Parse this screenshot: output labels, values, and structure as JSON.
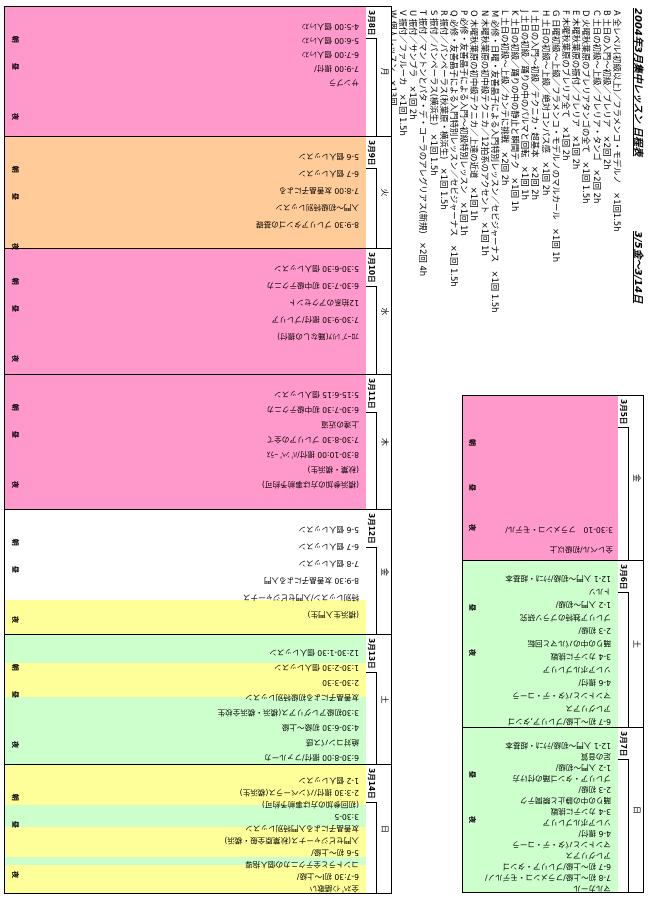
{
  "legend": {
    "title": "2004年3月集中レッスン 日程表",
    "range": "3/5金～3/14日",
    "items": [
      "A 全レベル(初級以上)／フラメンコ・モデルノ　×1回1.5h",
      "B 土日の入門～初級／ブレリア　×2回 2h",
      "C 土日の初級～上級／ブレリア・タンゴ　×2回 2h",
      "D 火曜秋葉原のブレリアタンゴの全て　×1回 1.5h",
      "E 木曜秋葉原の振付／ブレリア　×1回 2h",
      "F 木曜秋葉原のブレリア全て　×1回 2h",
      "G 日曜初級～上級／フラメンコ・モデルノのマルカール　×1回 1h",
      "H 土日の初級～上級／絶対コンパス感　×1回 2h",
      "I 土日の入門～初級／テクニカ・超基本　×2回 2h",
      "J 土日の初級／踊りの中のパルマと回転　×1回 1h",
      "K 土日の初級／踊りの中の静止と瞬間テク　×1回 1h",
      "L 土日の初級～上級／カンテに挑戦　×2回 2h",
      "M 必修・日曜・友善晶子による入門特別レッスン／セビジャーナス　×1回 1.5h",
      "N 木曜秋葉原の初中級テクニカ／12拍系のアクセント　×1回 1h",
      "O 木曜秋葉原の初中級テクニカ／上達の近道　×1回 1h",
      "P 必修・友善晶子による入門～初級特別レッスン　×1回 1h",
      "Q 必修・友善晶子による入門特別レッスン／セビジャーナス　×1回 1.5h",
      "R 振付／パンペーラス(秋葉原・横浜生)　×1回 1.5h",
      "S 振付／パンペーラス(横浜生)　×1回 1.5h",
      "T 振付／マントンとパタ・デ・コーラのアレグリアス(新規)　×2回 4h",
      "U 振付／サンブラ　×1回 2h",
      "V 振付／ファルーカ　×1回 1.5h",
      "W 個人レッスン　×13回"
    ]
  },
  "days": {
    "mon": "月",
    "tue": "火",
    "wed": "水",
    "thu": "木",
    "fri": "金",
    "sat": "土",
    "sun": "日"
  },
  "dates": {
    "d5": "3月5日",
    "d6": "3月6日",
    "d7": "3月7日",
    "d8": "3月8日",
    "d9": "3月9日",
    "d10": "3月10日",
    "d11": "3月11日",
    "d12": "3月12日",
    "d13": "3月13日",
    "d14": "3月14日"
  },
  "marks": {
    "am": "朝",
    "noon": "昼",
    "eve": "夜",
    "night": "夜"
  },
  "week1": {
    "fri": [
      "3:30-10　フラメンコ・モデル/",
      "全レベル/初級以上"
    ],
    "sat": [
      "12-1 入門～初級/ﾃｸﾆｶ・超基本",
      "トルソ",
      "1-2 入門～初級/",
      "ブレリア独特のブラソ研究",
      "2-3 初級/",
      "踊りの中のパルマと回転",
      "3-4 カンテに挑戦",
      "ソレアボルブレリア",
      "4-6 振付/",
      "マントンとパタ・デ・コーラ",
      "アレグリアス",
      "6-7 初～上級/ブレリア,タンゴ"
    ],
    "sun": [
      "12-1 入門～初級/ﾃｸﾆｶ・超基本",
      "足の音質",
      "1-2 入門～初級/",
      "ブレリア・タンゴ踊の付け方",
      "2-3 初級/",
      "踊りの中の静止と瞬間テク",
      "3-4 カンテに挑戦",
      "ソレアボルブレリア",
      "4-6 振付/",
      "マントンとパタ・デ・コーラ",
      "アレグリアス",
      "6-7 初～上級/ブレリア・タンゴ",
      "7-8 初～上級/フラメンコ・モデルノ/",
      "マルカール"
    ]
  },
  "week2": {
    "mon": [
      "4-5:00 個人ﾚｯｽﾝ",
      "5-6:00 個人ﾚｯｽﾝ",
      "6-7:00 個人ﾚｯｽﾝ",
      "7-9:00 振付/",
      "サンブラ"
    ],
    "tue": [
      "5-6 個人レッスン",
      "6-7 個人レッスン",
      "7-8:00 友善晶子による",
      "入門～初級特別レッスン",
      "8-9:30 ブレリアタンゴの基礎"
    ],
    "wed": [
      "5:30-6:30 個人レッスン",
      "6:30-7:30 初中級テクニカ",
      "12拍系のアクセント",
      "7:30-9:30 振付/ブレリア",
      "ﾌﾛｰﾌﾞﾚﾘｱ(踊なしの振付)"
    ],
    "thu": [
      "5:15-6:15 個人レッスン",
      "6:30-7:30 初中級テクニカ",
      "上達の近道",
      "7:30-8:30 ブレリアの全て",
      "8:30-10:00 振付/ﾊﾟﾝﾍﾟｰﾗｽ",
      "(秋葉・横浜生)",
      "(横浜参加の方は事前予約可)"
    ],
    "fri": [
      "5-6 個人レッスン",
      "6-7 個人レッスン",
      "7-8 個人レッスン",
      "8-9:30 友善晶子による入門",
      "特別レッスン/入門セビジャーナス",
      "(横浜生入門生)"
    ],
    "sat": [
      "12:30-1:30 個人レッスン",
      "1:30-2:30 個人レッスン",
      "2:30-3:30",
      "友善晶子による初級特別レッスン",
      "3:30初級アレグリアス(横浜・横浜全校生",
      "4:30-6:30 初級～上級",
      "絶対コンパス感",
      "6:30-8:00 振付/ファルーカ"
    ],
    "sun": [
      "1-2 個人レッスン",
      "2-3:30 振付/パンペーラス(横浜生)",
      "(初回参加の方は事前予約可)",
      "3:30-5",
      "友善晶子による入門特別レッスン",
      "入門セビジャーナス(秋葉原全般・横浜)",
      "5-6 初～上級/",
      "コントラと全テクニカの個人指導",
      "6-7:30 初Ⅰ～上級/",
      "全ｽﾍﾟｲﾝ語歌い"
    ]
  }
}
